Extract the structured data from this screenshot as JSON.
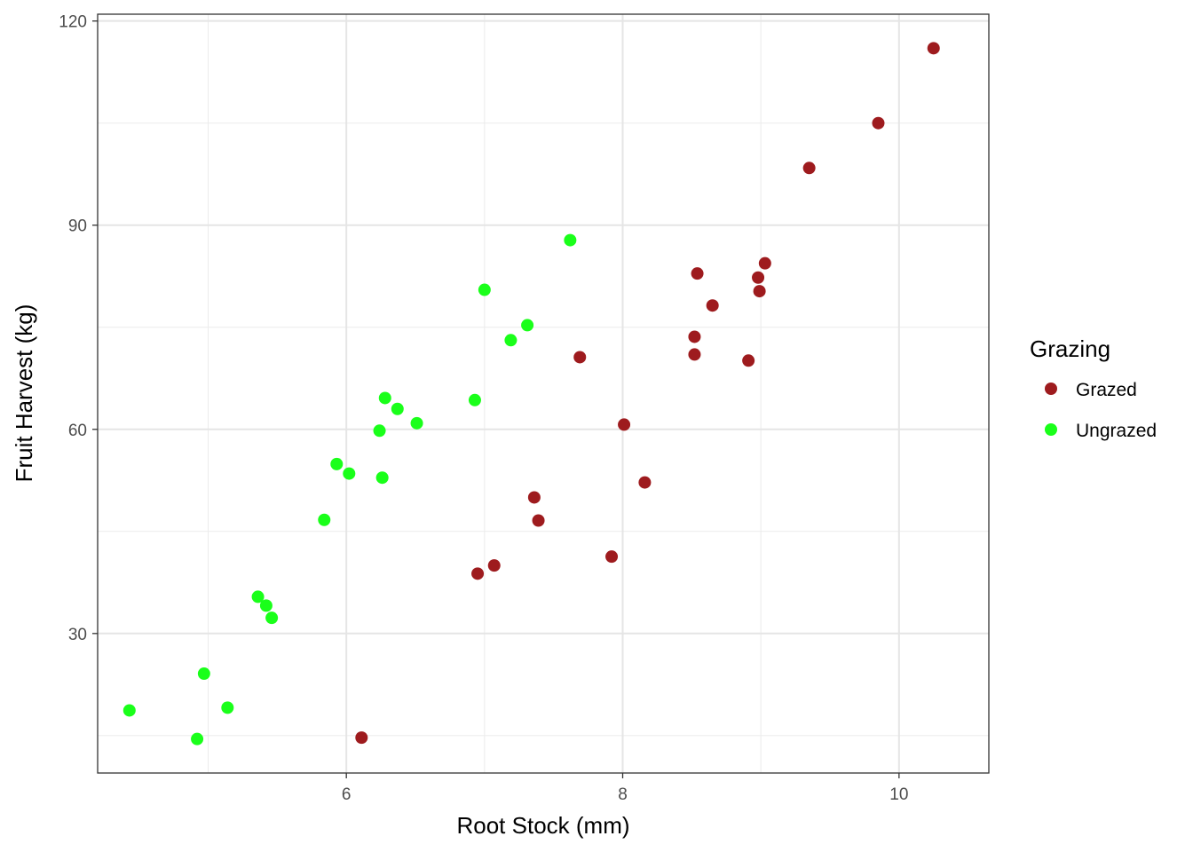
{
  "chart_data": {
    "type": "scatter",
    "title": "",
    "xlabel": "Root Stock (mm)",
    "ylabel": "Fruit Harvest (kg)",
    "xlim": [
      4.2,
      10.65
    ],
    "ylim": [
      9.5,
      121
    ],
    "x_ticks": [
      6,
      8,
      10
    ],
    "y_ticks": [
      30,
      60,
      90,
      120
    ],
    "grid": true,
    "legend": {
      "title": "Grazing",
      "position": "right"
    },
    "series": [
      {
        "name": "Grazed",
        "color": "#9e1b1e",
        "points": [
          {
            "x": 10.25,
            "y": 116.0
          },
          {
            "x": 9.85,
            "y": 105.0
          },
          {
            "x": 9.35,
            "y": 98.4
          },
          {
            "x": 9.03,
            "y": 84.4
          },
          {
            "x": 8.98,
            "y": 82.3
          },
          {
            "x": 8.99,
            "y": 80.3
          },
          {
            "x": 8.54,
            "y": 82.9
          },
          {
            "x": 8.65,
            "y": 78.2
          },
          {
            "x": 8.52,
            "y": 73.6
          },
          {
            "x": 8.52,
            "y": 71.0
          },
          {
            "x": 8.91,
            "y": 70.1
          },
          {
            "x": 7.69,
            "y": 70.6
          },
          {
            "x": 8.01,
            "y": 60.7
          },
          {
            "x": 8.16,
            "y": 52.2
          },
          {
            "x": 7.36,
            "y": 50.0
          },
          {
            "x": 7.39,
            "y": 46.6
          },
          {
            "x": 7.92,
            "y": 41.3
          },
          {
            "x": 7.07,
            "y": 40.0
          },
          {
            "x": 6.95,
            "y": 38.8
          },
          {
            "x": 6.11,
            "y": 14.7
          }
        ]
      },
      {
        "name": "Ungrazed",
        "color": "#1aff1a",
        "points": [
          {
            "x": 7.62,
            "y": 87.8
          },
          {
            "x": 7.0,
            "y": 80.5
          },
          {
            "x": 7.31,
            "y": 75.3
          },
          {
            "x": 7.19,
            "y": 73.1
          },
          {
            "x": 6.28,
            "y": 64.6
          },
          {
            "x": 6.93,
            "y": 64.3
          },
          {
            "x": 6.37,
            "y": 63.0
          },
          {
            "x": 6.51,
            "y": 60.9
          },
          {
            "x": 6.24,
            "y": 59.8
          },
          {
            "x": 5.93,
            "y": 54.9
          },
          {
            "x": 6.02,
            "y": 53.5
          },
          {
            "x": 6.26,
            "y": 52.9
          },
          {
            "x": 5.84,
            "y": 46.7
          },
          {
            "x": 5.36,
            "y": 35.4
          },
          {
            "x": 5.42,
            "y": 34.1
          },
          {
            "x": 5.46,
            "y": 32.3
          },
          {
            "x": 4.97,
            "y": 24.1
          },
          {
            "x": 5.14,
            "y": 19.1
          },
          {
            "x": 4.43,
            "y": 18.7
          },
          {
            "x": 4.92,
            "y": 14.5
          }
        ]
      }
    ]
  }
}
